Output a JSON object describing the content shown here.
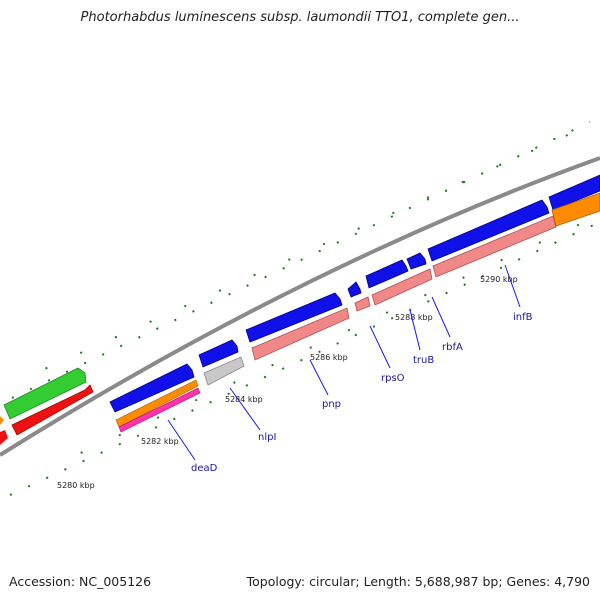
{
  "title": "Photorhabdus luminescens subsp. laumondii TTO1, complete gen...",
  "footer": {
    "accession": "Accession: NC_005126",
    "summary": "Topology: circular; Length: 5,688,987 bp; Genes: 4,790"
  },
  "colors": {
    "forward_cds": "#1010e8",
    "reverse_cds": "#f08888",
    "backbone": "#8a8a8a",
    "tick": "#1e7a1e",
    "green_feature": "#33cc33",
    "red_feature": "#ee1111",
    "orange_feature": "#ff8c00",
    "magenta_feature": "#ff33aa",
    "grey_feature": "#c0c0c0",
    "label_line": "#1a1aee"
  },
  "kbp_ticks": [
    "5280 kbp",
    "5282 kbp",
    "5284 kbp",
    "5286 kbp",
    "5288 kbp",
    "5290 kbp"
  ],
  "genes": [
    "deaD",
    "nlpI",
    "pnp",
    "rpsO",
    "truB",
    "rbfA",
    "infB"
  ]
}
